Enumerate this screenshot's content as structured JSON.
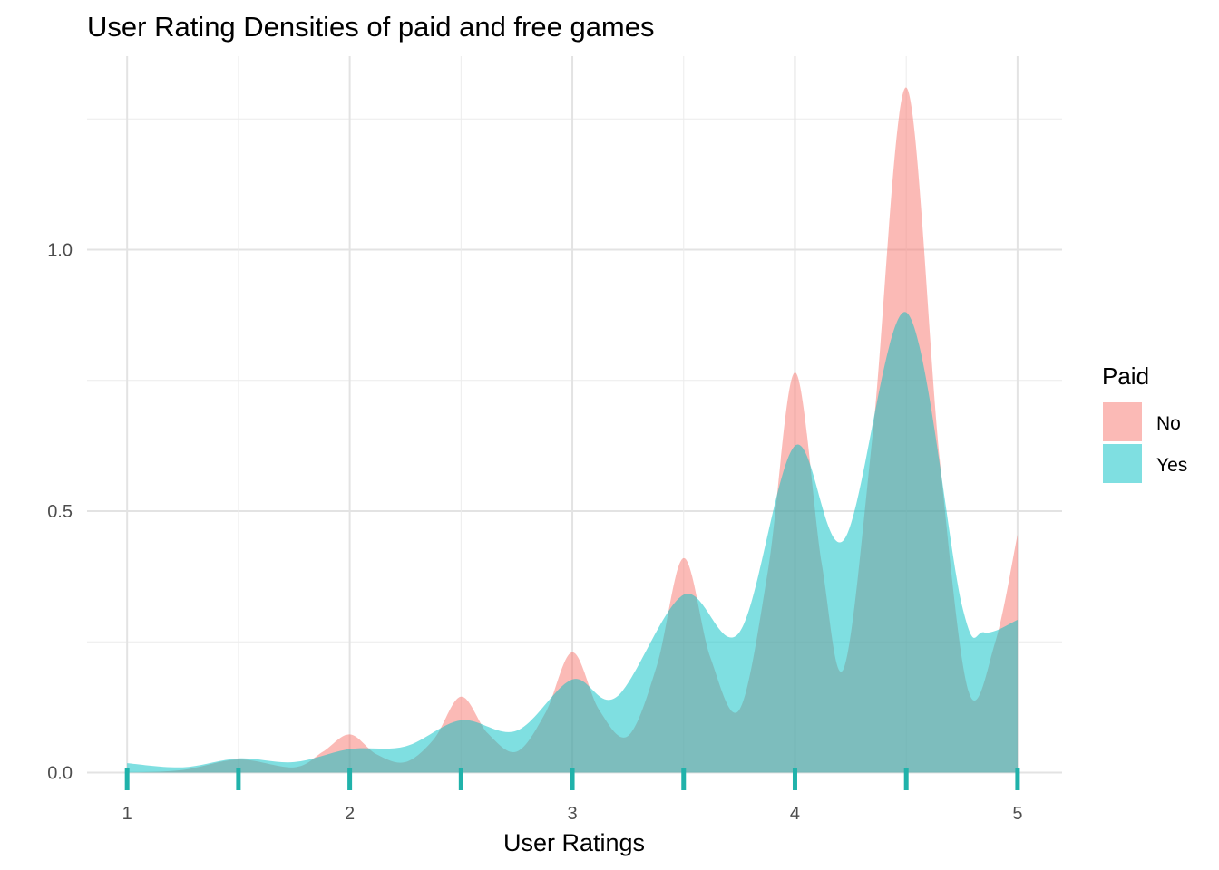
{
  "chart_data": {
    "type": "area",
    "subtype": "density",
    "title": "User Rating Densities of paid and free games",
    "xlabel": "User Ratings",
    "ylabel": "",
    "xlim": [
      0.82,
      5.2
    ],
    "ylim": [
      -0.02,
      1.37
    ],
    "x_ticks": [
      1,
      2,
      3,
      4,
      5
    ],
    "y_ticks": [
      0.0,
      0.5,
      1.0
    ],
    "y_tick_labels": [
      "0.0",
      "0.5",
      "1.0"
    ],
    "grid": true,
    "legend": {
      "title": "Paid",
      "position": "right"
    },
    "rug": {
      "x": [
        1,
        1.5,
        2,
        2.5,
        3,
        3.5,
        4,
        4.5,
        5
      ],
      "color": "#20b2aa"
    },
    "series": [
      {
        "name": "No",
        "color": "#f8766d",
        "x": [
          1.0,
          1.25,
          1.5,
          1.75,
          1.88,
          2.0,
          2.12,
          2.25,
          2.38,
          2.5,
          2.62,
          2.75,
          2.88,
          3.0,
          3.12,
          3.25,
          3.38,
          3.5,
          3.62,
          3.75,
          3.88,
          4.0,
          4.12,
          4.22,
          4.35,
          4.5,
          4.65,
          4.78,
          4.9,
          5.0
        ],
        "y": [
          0.0,
          0.005,
          0.025,
          0.01,
          0.04,
          0.073,
          0.035,
          0.02,
          0.065,
          0.145,
          0.075,
          0.04,
          0.115,
          0.23,
          0.12,
          0.07,
          0.205,
          0.41,
          0.22,
          0.12,
          0.39,
          0.765,
          0.4,
          0.2,
          0.65,
          1.31,
          0.6,
          0.155,
          0.25,
          0.455
        ]
      },
      {
        "name": "Yes",
        "color": "#00bfc4",
        "x": [
          1.0,
          1.25,
          1.5,
          1.75,
          2.0,
          2.25,
          2.5,
          2.75,
          3.0,
          3.2,
          3.5,
          3.75,
          4.0,
          4.22,
          4.5,
          4.75,
          4.85,
          5.0
        ],
        "y": [
          0.018,
          0.01,
          0.027,
          0.02,
          0.045,
          0.05,
          0.1,
          0.08,
          0.178,
          0.145,
          0.34,
          0.268,
          0.625,
          0.445,
          0.88,
          0.32,
          0.268,
          0.292
        ]
      }
    ]
  }
}
